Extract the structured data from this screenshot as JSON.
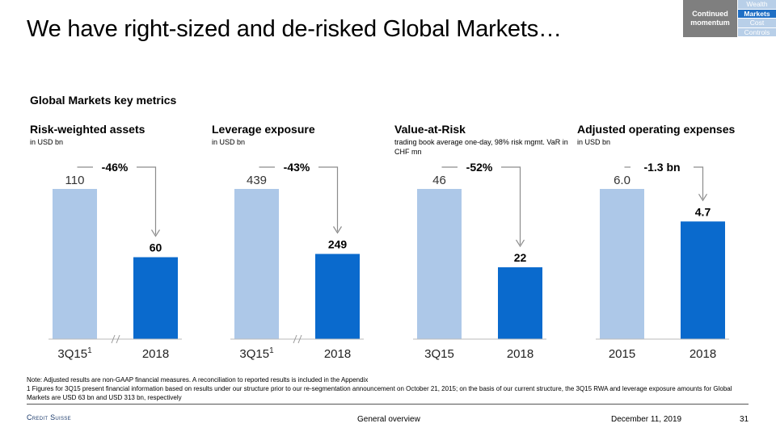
{
  "title": "We have right-sized and de-risked Global Markets…",
  "nav": {
    "section": "Continued momentum",
    "items": [
      {
        "label": "Wealth",
        "active": false
      },
      {
        "label": "Markets",
        "active": true
      },
      {
        "label": "Cost",
        "active": false
      },
      {
        "label": "Controls",
        "active": false
      }
    ]
  },
  "subtitle": "Global Markets key metrics",
  "colors": {
    "first_bar": "#adc8e8",
    "second_bar": "#0a6acd",
    "arrow": "#8c8c8c"
  },
  "chart_data": [
    {
      "type": "bar",
      "title": "Risk-weighted assets",
      "unit": "in USD bn",
      "categories": [
        "3Q15",
        "2018"
      ],
      "superscripts": [
        "1",
        ""
      ],
      "values": [
        110,
        60
      ],
      "value_labels": [
        "110",
        "60"
      ],
      "change_label": "-46%",
      "axis_break": true
    },
    {
      "type": "bar",
      "title": "Leverage exposure",
      "unit": "in USD bn",
      "categories": [
        "3Q15",
        "2018"
      ],
      "superscripts": [
        "1",
        ""
      ],
      "values": [
        439,
        249
      ],
      "value_labels": [
        "439",
        "249"
      ],
      "change_label": "-43%",
      "axis_break": true
    },
    {
      "type": "bar",
      "title": "Value-at-Risk",
      "unit": "trading book average one-day, 98% risk mgmt. VaR in CHF mn",
      "categories": [
        "3Q15",
        "2018"
      ],
      "superscripts": [
        "",
        ""
      ],
      "values": [
        46,
        22
      ],
      "value_labels": [
        "46",
        "22"
      ],
      "change_label": "-52%",
      "axis_break": false
    },
    {
      "type": "bar",
      "title": "Adjusted operating expenses",
      "unit": "in USD bn",
      "categories": [
        "2015",
        "2018"
      ],
      "superscripts": [
        "",
        ""
      ],
      "values": [
        6.0,
        4.7
      ],
      "value_labels": [
        "6.0",
        "4.7"
      ],
      "change_label": "-1.3 bn",
      "axis_break": false
    }
  ],
  "notes": [
    "Note: Adjusted results are non-GAAP financial measures. A reconciliation to reported results is included in the Appendix",
    "1 Figures for 3Q15 present financial information based on results under our structure prior to our re-segmentation announcement on October 21, 2015; on the basis of our current structure, the 3Q15 RWA and leverage exposure amounts for Global Markets are USD 63 bn and USD 313 bn, respectively"
  ],
  "footer": {
    "logo": "Credit Suisse",
    "section": "General overview",
    "date": "December 11, 2019",
    "page": "31"
  }
}
